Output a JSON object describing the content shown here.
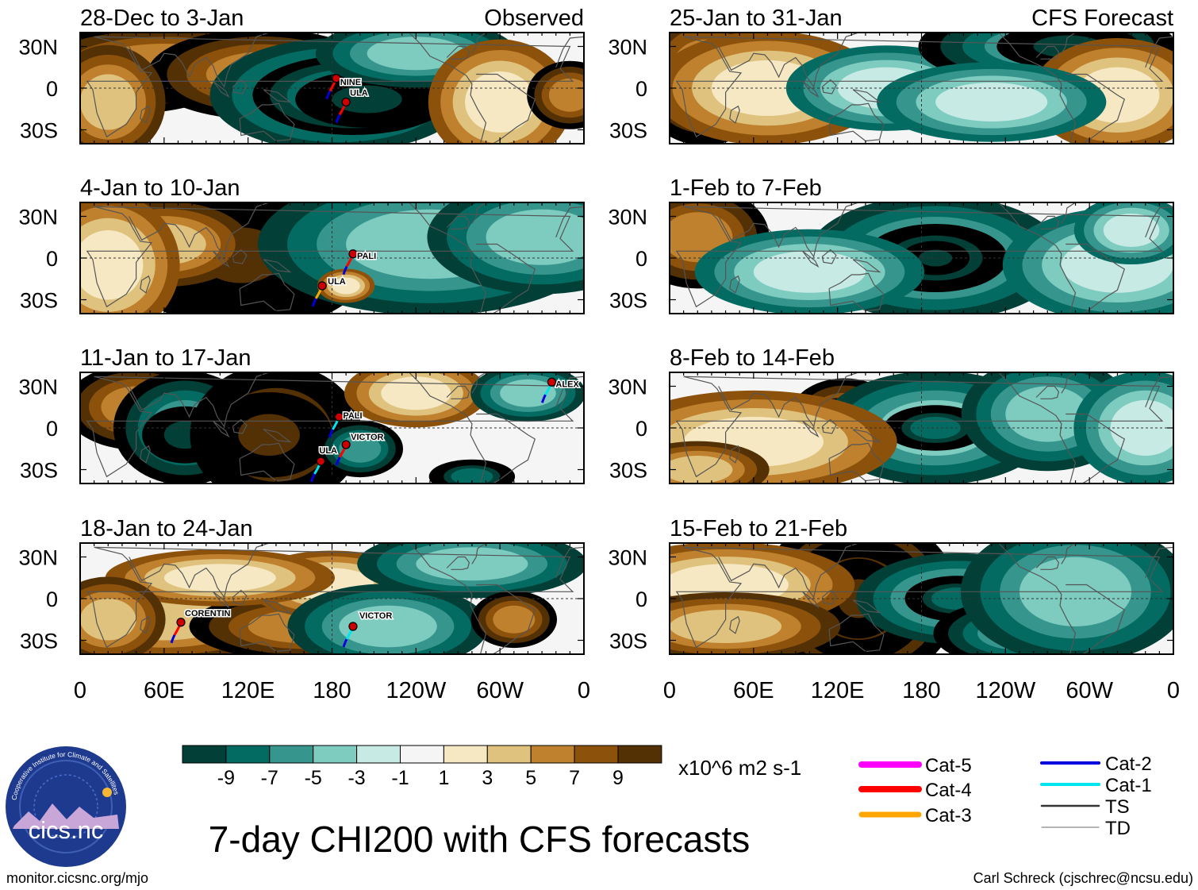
{
  "title": "7-day CHI200 with CFS forecasts",
  "source_url": "monitor.cicsnc.org/mjo",
  "credit": "Carl Schreck (cjschrec@ncsu.edu)",
  "logo": {
    "ring_text": "Cooperative Institute for Climate and Satellites",
    "wordmark": "cics.nc"
  },
  "columns": {
    "observed_label": "Observed",
    "forecast_label": "CFS Forecast"
  },
  "lat_labels": [
    "30N",
    "0",
    "30S"
  ],
  "lon_labels": [
    "0",
    "60E",
    "120E",
    "180",
    "120W",
    "60W",
    "0"
  ],
  "panels": [
    {
      "period": "28-Dec to 3-Jan",
      "column": "observed",
      "storms": [
        {
          "name": "NINE",
          "category": "Cat-4"
        },
        {
          "name": "ULA",
          "category": "Cat-4"
        }
      ]
    },
    {
      "period": "4-Jan to 10-Jan",
      "column": "observed",
      "storms": [
        {
          "name": "PALI",
          "category": "Cat-4"
        },
        {
          "name": "ULA",
          "category": "Cat-3"
        }
      ]
    },
    {
      "period": "11-Jan to 17-Jan",
      "column": "observed",
      "storms": [
        {
          "name": "ALEX",
          "category": "Cat-1"
        },
        {
          "name": "PALI",
          "category": "Cat-1"
        },
        {
          "name": "VICTOR",
          "category": "Cat-4"
        },
        {
          "name": "ULA",
          "category": "Cat-1"
        }
      ]
    },
    {
      "period": "18-Jan to 24-Jan",
      "column": "observed",
      "storms": [
        {
          "name": "CORENTIN",
          "category": "Cat-4"
        },
        {
          "name": "VICTOR",
          "category": "Cat-1"
        }
      ]
    },
    {
      "period": "25-Jan to 31-Jan",
      "column": "forecast",
      "storms": []
    },
    {
      "period": "1-Feb to 7-Feb",
      "column": "forecast",
      "storms": []
    },
    {
      "period": "8-Feb to 14-Feb",
      "column": "forecast",
      "storms": []
    },
    {
      "period": "15-Feb to 21-Feb",
      "column": "forecast",
      "storms": []
    }
  ],
  "colorbar": {
    "units": "x10^6 m2 s-1",
    "tick_labels": [
      "-9",
      "-7",
      "-5",
      "-3",
      "-1",
      "1",
      "3",
      "5",
      "7",
      "9"
    ],
    "colors": [
      "#013f37",
      "#036b62",
      "#36968e",
      "#7ecbbf",
      "#c7eae5",
      "#f5f5f5",
      "#f6e8c3",
      "#dfc27d",
      "#bf812d",
      "#8c510a",
      "#543005"
    ]
  },
  "legend": [
    {
      "label": "Cat-5",
      "color": "#ff00ff"
    },
    {
      "label": "Cat-4",
      "color": "#ff0000"
    },
    {
      "label": "Cat-3",
      "color": "#ffa500"
    },
    {
      "label": "Cat-2",
      "color": "#0000dd"
    },
    {
      "label": "Cat-1",
      "color": "#00e5ee"
    },
    {
      "label": "TS",
      "color": "#333333"
    },
    {
      "label": "TD",
      "color": "#888888"
    }
  ]
}
